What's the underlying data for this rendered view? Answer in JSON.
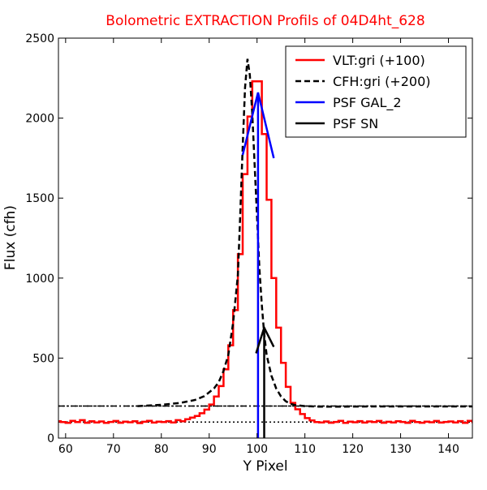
{
  "chart_data": {
    "type": "line",
    "title": "Bolometric EXTRACTION Profils of 04D4ht_628",
    "title_color": "#ff0000",
    "xlabel": "Y Pixel",
    "ylabel": "Flux (cfh)",
    "xlim": [
      58.5,
      145
    ],
    "ylim": [
      0,
      2500
    ],
    "xticks": [
      60,
      70,
      80,
      90,
      100,
      110,
      120,
      130,
      140
    ],
    "yticks": [
      0,
      500,
      1000,
      1500,
      2000,
      2500
    ],
    "legend_position": "top-right",
    "series": [
      {
        "name": "VLT:gri (+100)",
        "color": "#ff0000",
        "style": "solid-step",
        "x": [
          58.5,
          59,
          60,
          61,
          62,
          63,
          64,
          65,
          66,
          67,
          68,
          69,
          70,
          71,
          72,
          73,
          74,
          75,
          76,
          77,
          78,
          79,
          80,
          81,
          82,
          83,
          84,
          85,
          86,
          87,
          88,
          89,
          90,
          91,
          92,
          93,
          94,
          95,
          96,
          97,
          98,
          99,
          100,
          101,
          102,
          103,
          104,
          105,
          106,
          107,
          108,
          109,
          110,
          111,
          112,
          113,
          114,
          115,
          116,
          117,
          118,
          119,
          120,
          121,
          122,
          123,
          124,
          125,
          126,
          127,
          128,
          129,
          130,
          131,
          132,
          133,
          134,
          135,
          136,
          137,
          138,
          139,
          140,
          141,
          142,
          143,
          144,
          145
        ],
        "y": [
          105,
          100,
          95,
          108,
          100,
          112,
          96,
          105,
          98,
          104,
          95,
          101,
          107,
          96,
          103,
          99,
          105,
          94,
          102,
          108,
          97,
          103,
          100,
          106,
          98,
          112,
          105,
          118,
          128,
          138,
          155,
          178,
          210,
          260,
          325,
          430,
          580,
          800,
          1150,
          1650,
          2010,
          2230,
          2230,
          1900,
          1490,
          1000,
          690,
          470,
          320,
          220,
          180,
          150,
          125,
          110,
          100,
          98,
          104,
          96,
          101,
          108,
          95,
          103,
          99,
          106,
          97,
          104,
          100,
          107,
          96,
          102,
          98,
          105,
          101,
          95,
          108,
          100,
          96,
          103,
          99,
          107,
          97,
          101,
          104,
          98,
          106,
          95,
          108,
          100
        ]
      },
      {
        "name": "CFH:gri (+200)",
        "color": "#000000",
        "style": "dashed",
        "x": [
          75,
          80,
          84,
          87,
          89,
          91,
          92,
          93,
          94,
          95,
          96,
          96.5,
          97,
          97.5,
          98,
          98.5,
          99,
          99.5,
          100,
          100.5,
          101,
          101.5,
          102,
          103,
          104,
          105,
          106,
          107,
          108,
          110,
          113,
          118,
          124,
          130,
          140,
          145
        ],
        "y": [
          200,
          208,
          220,
          238,
          262,
          310,
          350,
          420,
          520,
          720,
          1020,
          1400,
          1820,
          2190,
          2370,
          2270,
          2030,
          1710,
          1380,
          1060,
          830,
          650,
          520,
          390,
          310,
          260,
          230,
          214,
          206,
          200,
          197,
          197,
          198,
          198,
          198,
          198
        ]
      },
      {
        "name": "PSF GAL_2",
        "color": "#0000ff",
        "style": "solid",
        "segments": [
          [
            [
              97,
              1770
            ],
            [
              100.2,
              2160
            ],
            [
              103.5,
              1750
            ]
          ],
          [
            [
              100.2,
              0
            ],
            [
              100.2,
              2160
            ]
          ]
        ]
      },
      {
        "name": "PSF SN",
        "color": "#000000",
        "style": "solid",
        "segments": [
          [
            [
              99.8,
              530
            ],
            [
              101.5,
              690
            ],
            [
              103.5,
              570
            ]
          ],
          [
            [
              101.5,
              0
            ],
            [
              101.5,
              690
            ]
          ]
        ]
      }
    ],
    "baselines": [
      {
        "y": 200,
        "style": "dash-dot",
        "color": "#000000",
        "x": [
          58.5,
          145
        ]
      },
      {
        "y": 200,
        "style": "dotted",
        "color": "#000000",
        "x": [
          58.5,
          145
        ]
      },
      {
        "y": 100,
        "style": "dotted",
        "color": "#000000",
        "x": [
          58.5,
          145
        ]
      }
    ]
  }
}
